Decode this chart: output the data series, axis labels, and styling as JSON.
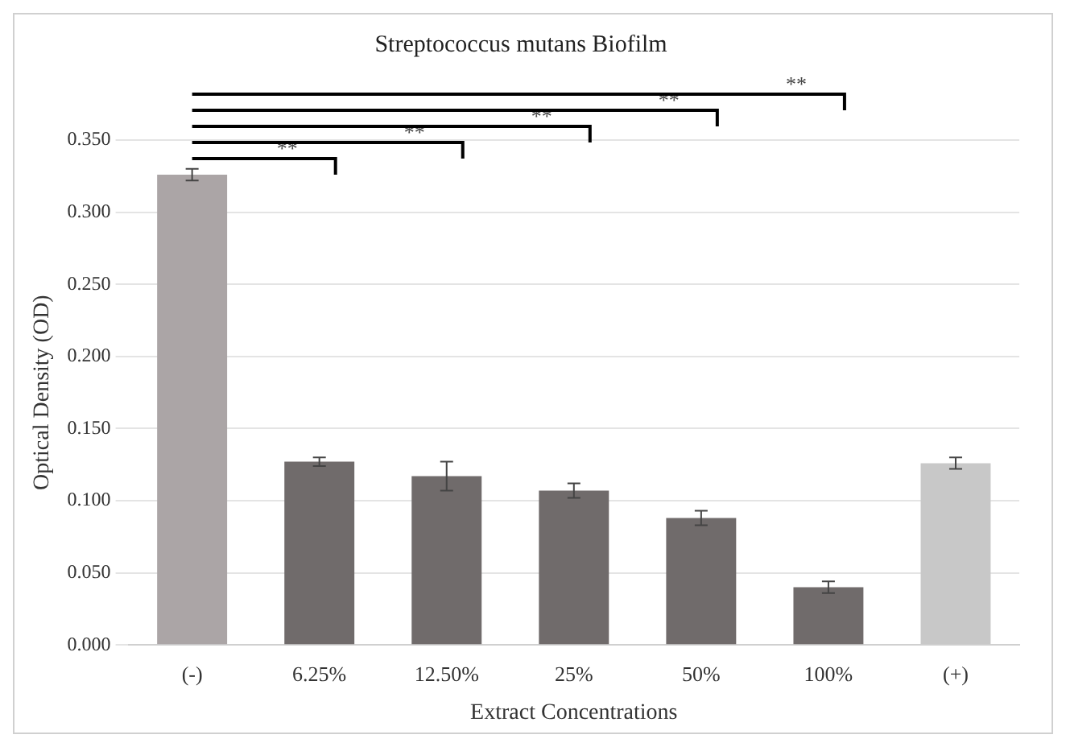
{
  "chart_data": {
    "type": "bar",
    "title": "Streptococcus mutans Biofilm",
    "xlabel": "Extract Concentrations",
    "ylabel": "Optical Density (OD)",
    "categories": [
      "(-)",
      "6.25%",
      "12.50%",
      "25%",
      "50%",
      "100%",
      "(+)"
    ],
    "values": [
      0.326,
      0.127,
      0.117,
      0.107,
      0.088,
      0.04,
      0.126
    ],
    "colors": [
      "#aba5a6",
      "#706b6b",
      "#706b6b",
      "#706b6b",
      "#706b6b",
      "#706b6b",
      "#c8c8c8"
    ],
    "errors": [
      0.004,
      0.003,
      0.01,
      0.005,
      0.005,
      0.004,
      0.004
    ],
    "ylim": [
      0,
      0.35
    ],
    "yticks": [
      {
        "value": 0,
        "label": "0.000"
      },
      {
        "value": 0.05,
        "label": "0.050"
      },
      {
        "value": 0.1,
        "label": "0.100"
      },
      {
        "value": 0.15,
        "label": "0.150"
      },
      {
        "value": 0.2,
        "label": "0.200"
      },
      {
        "value": 0.25,
        "label": "0.250"
      },
      {
        "value": 0.3,
        "label": "0.300"
      },
      {
        "value": 0.35,
        "label": "0.350"
      }
    ],
    "grid": "y",
    "annotations": [
      "**",
      "**",
      "**",
      "**",
      "**"
    ]
  }
}
